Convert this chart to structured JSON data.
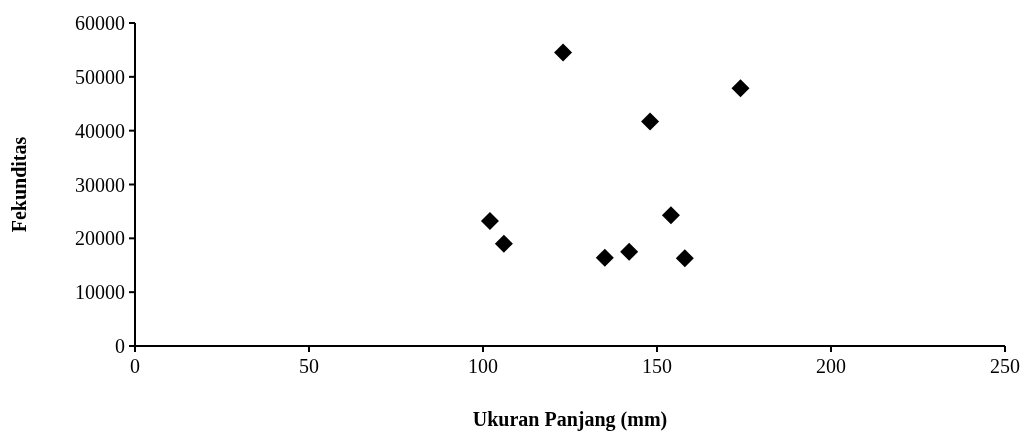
{
  "chart_data": {
    "type": "scatter",
    "xlabel": "Ukuran Panjang (mm)",
    "ylabel": "Fekunditas",
    "x": [
      102,
      106,
      123,
      135,
      142,
      148,
      154,
      158,
      174
    ],
    "series": [
      {
        "color": "#000000",
        "values": [
          23200,
          19000,
          54500,
          16400,
          17500,
          41700,
          24300,
          16300,
          47900
        ]
      }
    ],
    "marker": "diamond",
    "xlim": [
      0,
      250
    ],
    "xticks": [
      0,
      50,
      100,
      150,
      200,
      250
    ],
    "ylim": [
      0,
      60000
    ],
    "yticks": [
      0,
      10000,
      20000,
      30000,
      40000,
      50000,
      60000
    ],
    "grid": false
  }
}
